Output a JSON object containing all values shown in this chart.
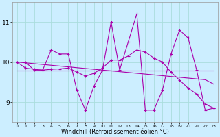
{
  "xlabel": "Windchill (Refroidissement éolien,°C)",
  "bg_color": "#cceeff",
  "grid_color": "#aadddd",
  "line_color": "#aa00aa",
  "x_data": [
    0,
    1,
    2,
    3,
    4,
    5,
    6,
    7,
    8,
    9,
    10,
    11,
    12,
    13,
    14,
    15,
    16,
    17,
    18,
    19,
    20,
    21,
    22,
    23
  ],
  "y_main": [
    10.0,
    10.0,
    9.8,
    9.8,
    10.3,
    10.2,
    10.2,
    9.3,
    8.8,
    9.4,
    9.8,
    11.0,
    9.8,
    10.5,
    11.2,
    8.8,
    8.8,
    9.3,
    10.2,
    10.8,
    10.6,
    9.8,
    8.8,
    8.85
  ],
  "y_curve": [
    10.0,
    9.85,
    9.82,
    9.8,
    9.82,
    9.83,
    9.85,
    9.75,
    9.65,
    9.72,
    9.85,
    10.05,
    10.05,
    10.15,
    10.3,
    10.25,
    10.1,
    10.0,
    9.75,
    9.55,
    9.35,
    9.2,
    8.95,
    8.85
  ],
  "y_flat": [
    9.78,
    9.78,
    9.78,
    9.78,
    9.78,
    9.78,
    9.78,
    9.78,
    9.78,
    9.78,
    9.78,
    9.78,
    9.78,
    9.78,
    9.78,
    9.78,
    9.78,
    9.78,
    9.78,
    9.78,
    9.78,
    9.78,
    9.78,
    9.78
  ],
  "y_trend": [
    10.0,
    9.98,
    9.96,
    9.94,
    9.92,
    9.9,
    9.88,
    9.86,
    9.84,
    9.82,
    9.8,
    9.78,
    9.76,
    9.74,
    9.72,
    9.7,
    9.68,
    9.66,
    9.64,
    9.62,
    9.6,
    9.58,
    9.56,
    9.45
  ],
  "ylim": [
    8.5,
    11.5
  ],
  "yticks": [
    9,
    10,
    11
  ],
  "xlim": [
    -0.5,
    23.5
  ],
  "figwidth": 3.2,
  "figheight": 2.0,
  "dpi": 100
}
